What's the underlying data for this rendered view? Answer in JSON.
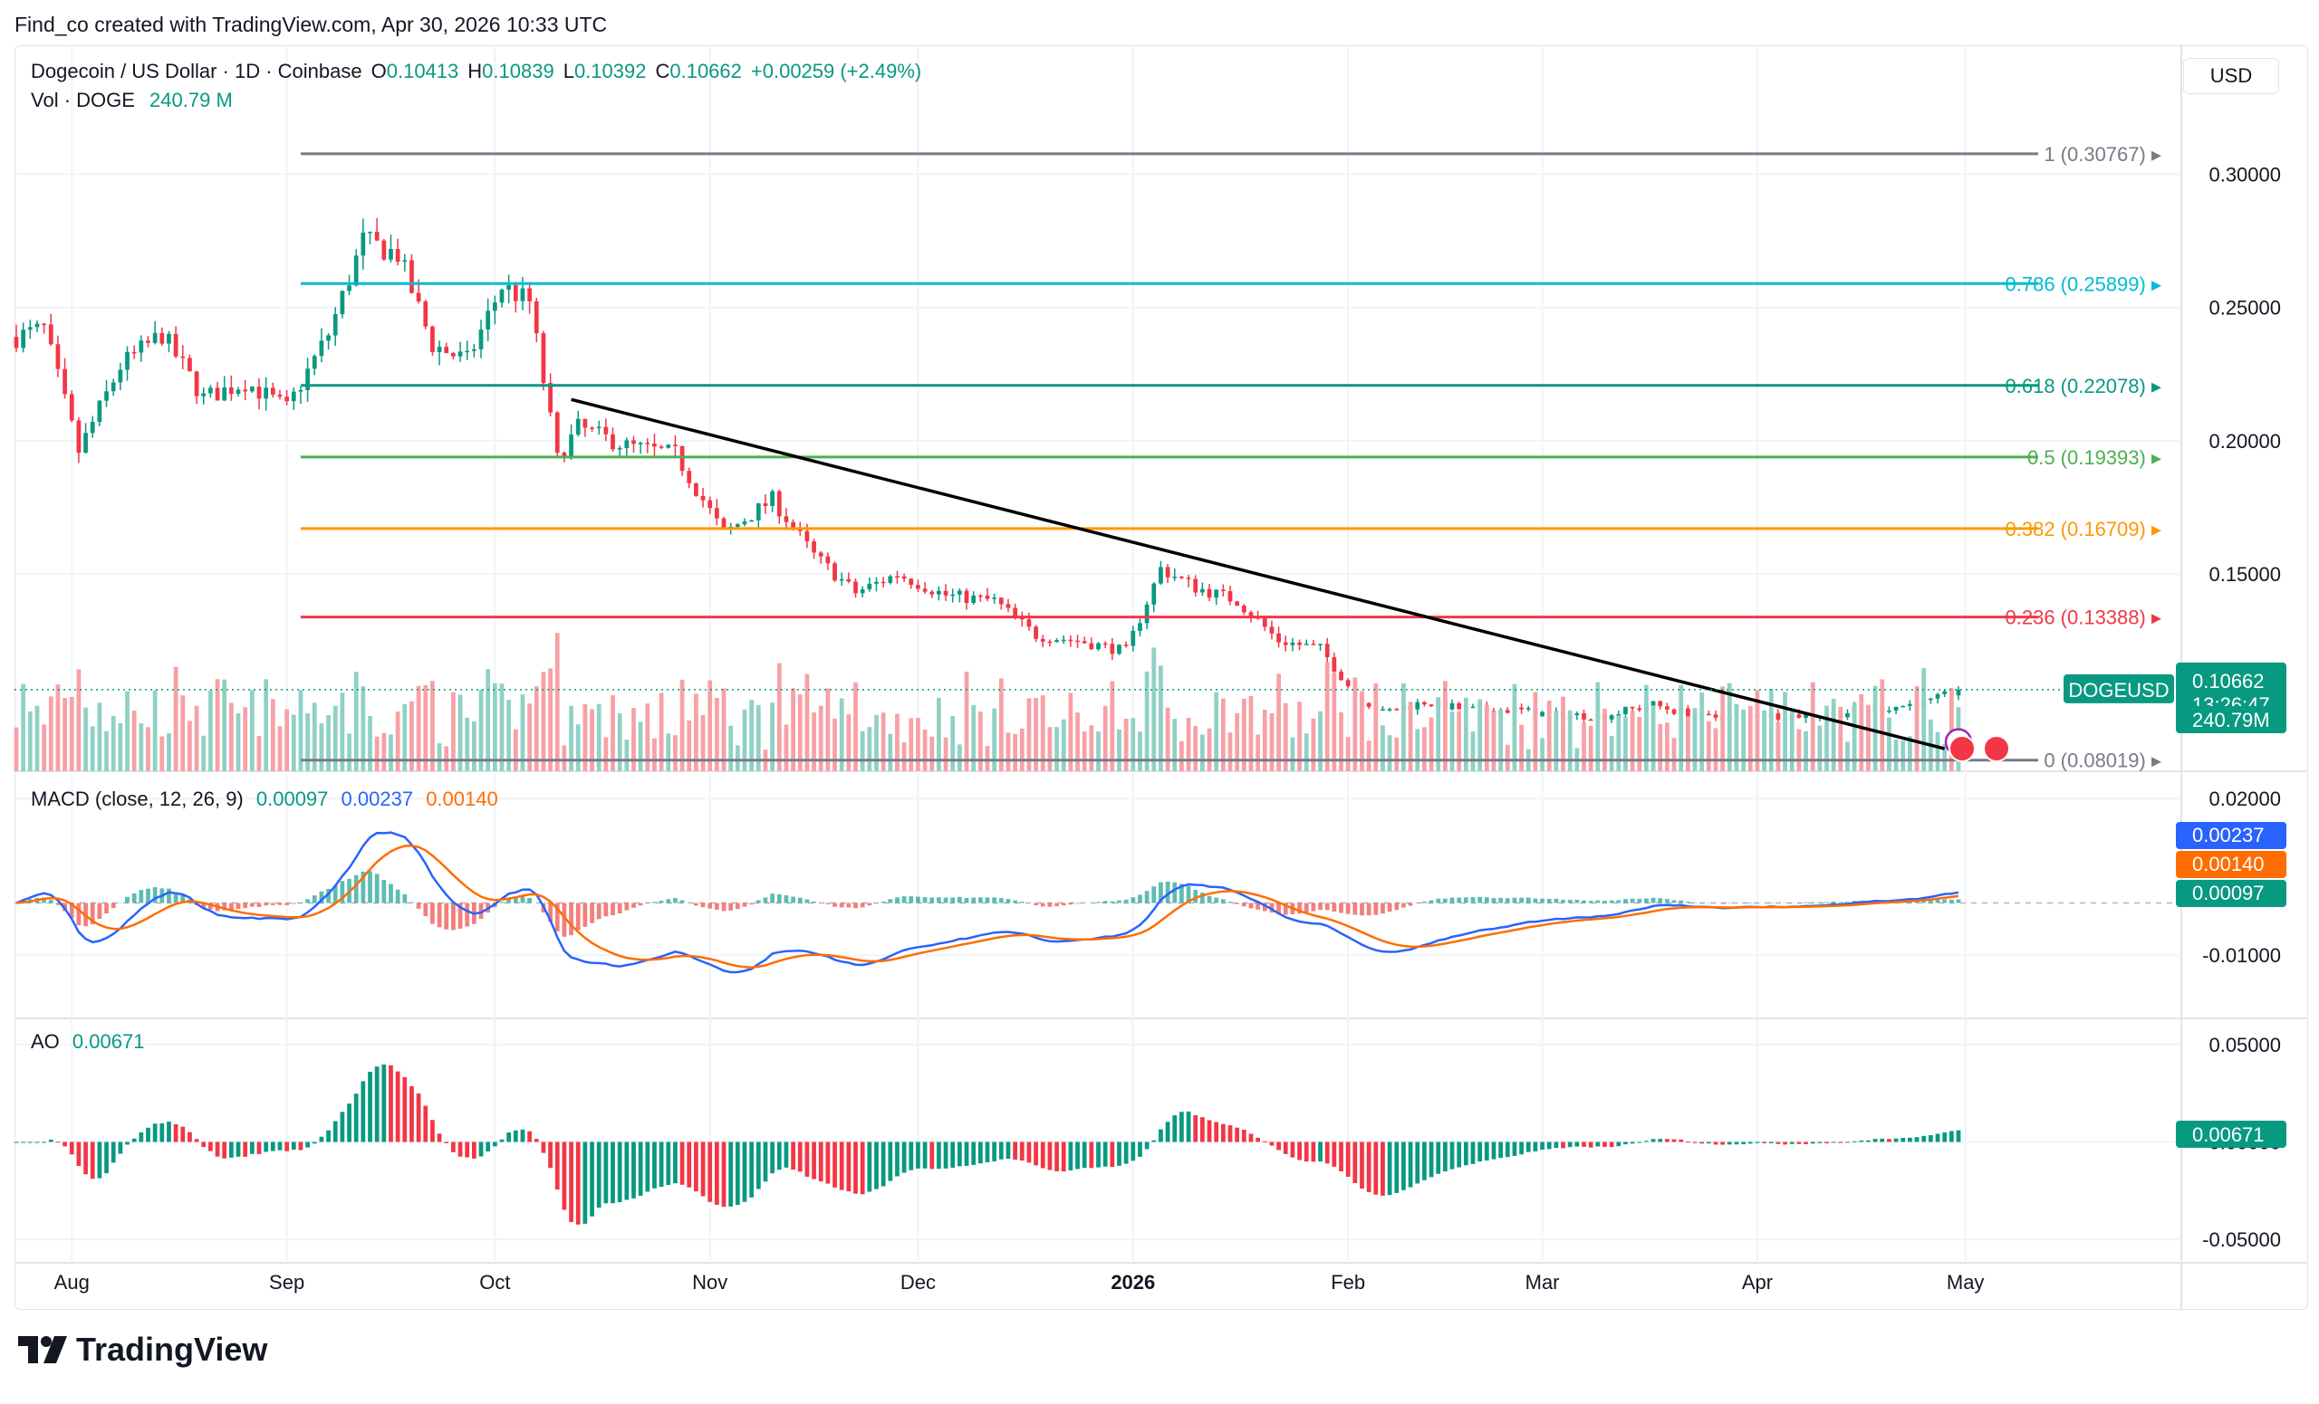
{
  "header": {
    "caption": "Find_co created with TradingView.com, Apr 30, 2026 10:33 UTC"
  },
  "symbol": {
    "name": "Dogecoin / US Dollar · 1D · Coinbase",
    "open_label": "O",
    "open": "0.10413",
    "high_label": "H",
    "high": "0.10839",
    "low_label": "L",
    "low": "0.10392",
    "close_label": "C",
    "close": "0.10662",
    "change": "+0.00259 (+2.49%)"
  },
  "volume_legend": {
    "label": "Vol · DOGE",
    "value": "240.79 M"
  },
  "currency_button": "USD",
  "price_badge": {
    "ticker": "DOGEUSD",
    "price": "0.10662",
    "countdown": "13:26:47"
  },
  "volume_badge": "240.79M",
  "macd": {
    "label": "MACD (close, 12, 26, 9)",
    "hist": "0.00097",
    "macd": "0.00237",
    "signal": "0.00140",
    "colors": {
      "macd": "#2962ff",
      "signal": "#ff6d00",
      "hist_up": "#26a69a",
      "hist_down": "#ef5350"
    }
  },
  "ao": {
    "label": "AO",
    "value": "0.00671"
  },
  "brand": {
    "name": "TradingView"
  },
  "colors": {
    "up": "#089981",
    "down": "#f23645",
    "vol_up": "#8fd1c5",
    "vol_down": "#f7a1a6",
    "trendline": "#000000"
  },
  "chart_data": [
    {
      "type": "candlestick",
      "title": "Dogecoin / US Dollar · 1D · Coinbase",
      "x_ticks": [
        "Aug",
        "Sep",
        "Oct",
        "Nov",
        "Dec",
        "2026",
        "Feb",
        "Mar",
        "Apr",
        "May"
      ],
      "y_ticks": [
        "0.30000",
        "0.25000",
        "0.20000",
        "0.15000"
      ],
      "ylim": [
        0.075,
        0.345
      ],
      "grid": true,
      "x_range": [
        "2025-07-24",
        "2026-04-30"
      ],
      "fibonacci": [
        {
          "level": "1",
          "price": 0.30767,
          "label": "1 (0.30767)",
          "color": "#787b86"
        },
        {
          "level": "0.786",
          "price": 0.25899,
          "label": "0.786 (0.25899)",
          "color": "#00bcd4"
        },
        {
          "level": "0.618",
          "price": 0.22078,
          "label": "0.618 (0.22078)",
          "color": "#089981"
        },
        {
          "level": "0.5",
          "price": 0.19393,
          "label": "0.5 (0.19393)",
          "color": "#4caf50"
        },
        {
          "level": "0.382",
          "price": 0.16709,
          "label": "0.382 (0.16709)",
          "color": "#ff9800"
        },
        {
          "level": "0.236",
          "price": 0.13388,
          "label": "0.236 (0.13388)",
          "color": "#f23645"
        },
        {
          "level": "0",
          "price": 0.08019,
          "label": "0 (0.08019)",
          "color": "#787b86"
        }
      ],
      "trendline": [
        {
          "date": "2025-10-12",
          "price": 0.2155
        },
        {
          "date": "2026-04-28",
          "price": 0.0845
        }
      ],
      "closes": [
        {
          "date": "2025-07-24",
          "close": 0.239
        },
        {
          "date": "2025-07-28",
          "close": 0.242
        },
        {
          "date": "2025-08-02",
          "close": 0.196
        },
        {
          "date": "2025-08-08",
          "close": 0.228
        },
        {
          "date": "2025-08-14",
          "close": 0.24
        },
        {
          "date": "2025-08-20",
          "close": 0.216
        },
        {
          "date": "2025-08-26",
          "close": 0.222
        },
        {
          "date": "2025-09-01",
          "close": 0.212
        },
        {
          "date": "2025-09-07",
          "close": 0.24
        },
        {
          "date": "2025-09-12",
          "close": 0.275
        },
        {
          "date": "2025-09-17",
          "close": 0.27
        },
        {
          "date": "2025-09-22",
          "close": 0.236
        },
        {
          "date": "2025-09-27",
          "close": 0.23
        },
        {
          "date": "2025-10-02",
          "close": 0.258
        },
        {
          "date": "2025-10-06",
          "close": 0.252
        },
        {
          "date": "2025-10-10",
          "close": 0.193
        },
        {
          "date": "2025-10-13",
          "close": 0.205
        },
        {
          "date": "2025-10-20",
          "close": 0.198
        },
        {
          "date": "2025-10-27",
          "close": 0.195
        },
        {
          "date": "2025-11-03",
          "close": 0.165
        },
        {
          "date": "2025-11-10",
          "close": 0.178
        },
        {
          "date": "2025-11-16",
          "close": 0.157
        },
        {
          "date": "2025-11-22",
          "close": 0.143
        },
        {
          "date": "2025-11-28",
          "close": 0.15
        },
        {
          "date": "2025-12-05",
          "close": 0.142
        },
        {
          "date": "2025-12-12",
          "close": 0.14
        },
        {
          "date": "2025-12-18",
          "close": 0.127
        },
        {
          "date": "2025-12-24",
          "close": 0.125
        },
        {
          "date": "2025-12-31",
          "close": 0.121
        },
        {
          "date": "2026-01-05",
          "close": 0.152
        },
        {
          "date": "2026-01-10",
          "close": 0.145
        },
        {
          "date": "2026-01-16",
          "close": 0.14
        },
        {
          "date": "2026-01-22",
          "close": 0.125
        },
        {
          "date": "2026-01-28",
          "close": 0.122
        },
        {
          "date": "2026-02-02",
          "close": 0.105
        },
        {
          "date": "2026-02-06",
          "close": 0.098
        },
        {
          "date": "2026-02-12",
          "close": 0.102
        },
        {
          "date": "2026-02-18",
          "close": 0.099
        },
        {
          "date": "2026-02-25",
          "close": 0.099
        },
        {
          "date": "2026-03-03",
          "close": 0.097
        },
        {
          "date": "2026-03-10",
          "close": 0.097
        },
        {
          "date": "2026-03-17",
          "close": 0.101
        },
        {
          "date": "2026-03-24",
          "close": 0.096
        },
        {
          "date": "2026-03-31",
          "close": 0.097
        },
        {
          "date": "2026-04-07",
          "close": 0.097
        },
        {
          "date": "2026-04-13",
          "close": 0.098
        },
        {
          "date": "2026-04-20",
          "close": 0.1
        },
        {
          "date": "2026-04-26",
          "close": 0.102
        },
        {
          "date": "2026-04-30",
          "close": 0.10662
        }
      ]
    },
    {
      "type": "line",
      "title": "MACD (close, 12, 26, 9)",
      "y_ticks": [
        "0.02000",
        "-0.01000"
      ],
      "ylim": [
        -0.0195,
        0.0235
      ]
    },
    {
      "type": "bar",
      "title": "AO",
      "y_ticks": [
        "0.05000",
        "0.00000",
        "-0.05000"
      ],
      "ylim": [
        -0.062,
        0.062
      ]
    }
  ]
}
